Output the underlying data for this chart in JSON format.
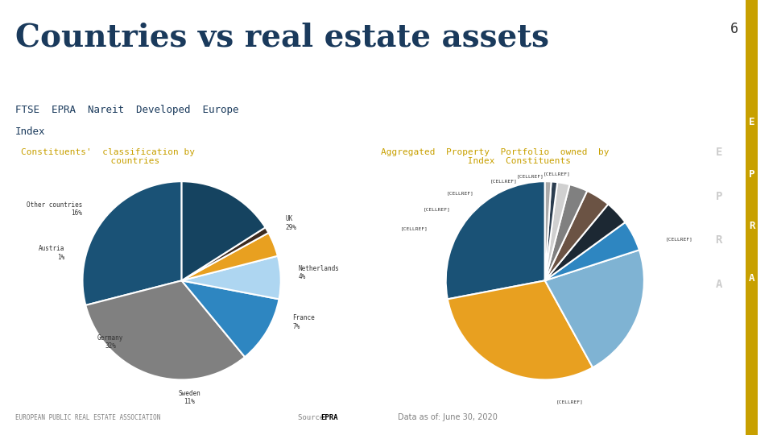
{
  "title": "Countries vs real estate assets",
  "subtitle_line1": "FTSE  EPRA  Nareit  Developed  Europe",
  "subtitle_line2": "Index",
  "page_num": "6",
  "subtitle_color": "#1a3a5c",
  "title_color": "#1a3a5c",
  "chart1_title": "Constituents'  classification by\n          countries",
  "chart2_title": "Aggregated  Property  Portfolio  owned  by\n         Index  Constituents",
  "chart_title_color": "#c8a000",
  "background_color": "#ffffff",
  "epra_side_color": "#c8a000",
  "epra_side_letters": [
    "E",
    "P",
    "R",
    "A"
  ],
  "pie1_labels": [
    "UK",
    "Germany",
    "Sweden",
    "France",
    "Netherlands",
    "Austria",
    "Other countries"
  ],
  "pie1_values": [
    29,
    32,
    11,
    7,
    4,
    1,
    16
  ],
  "pie1_colors": [
    "#1a5276",
    "#808080",
    "#2e86c1",
    "#aed6f1",
    "#e8a020",
    "#3d2b1f",
    "#154360"
  ],
  "pie1_startangle": 90,
  "pie2_labels": [
    "[CELLREF]",
    "[CELLREF]",
    "[CELLREF]",
    "[CELLREF]",
    "[CELLREF]",
    "[CELLREF]",
    "[CELLREF]",
    "[CELLREF]",
    "[CELLREF]",
    "[CELLREF]"
  ],
  "pie2_values": [
    28,
    30,
    22,
    5,
    4,
    4,
    3,
    2,
    1,
    1
  ],
  "pie2_colors": [
    "#1a5276",
    "#e8a020",
    "#7fb3d3",
    "#2e86c1",
    "#1c2833",
    "#6b5344",
    "#808080",
    "#d0d0d0",
    "#2c3e50",
    "#aaaaaa"
  ],
  "pie2_startangle": 90,
  "footer_left": "EUROPEAN PUBLIC REAL ESTATE ASSOCIATION",
  "footer_source": "Source:",
  "footer_source_bold": "EPRA",
  "footer_date": "Data as of: June 30, 2020",
  "footer_color": "#808080",
  "footer_bold_color": "#000000"
}
